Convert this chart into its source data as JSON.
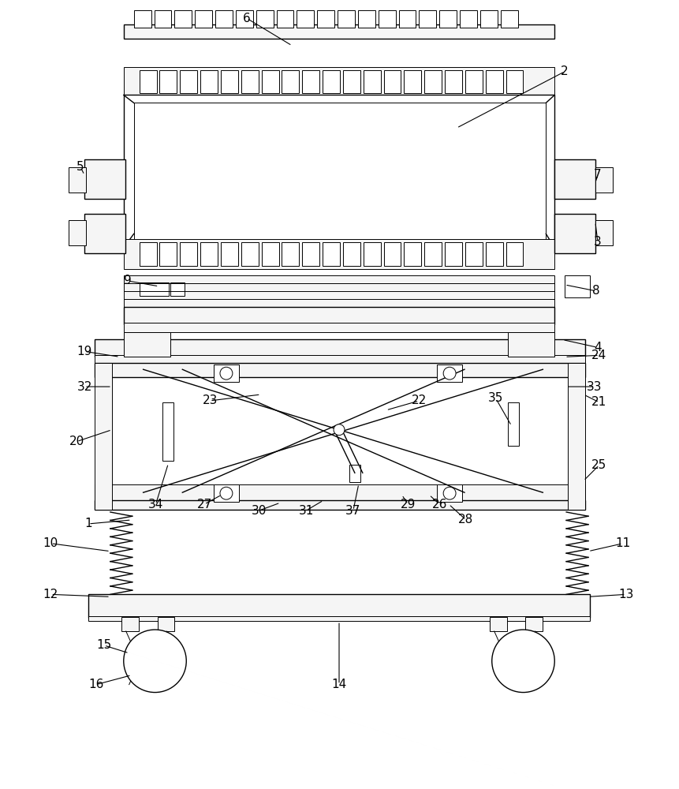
{
  "bg_color": "#ffffff",
  "line_color": "#000000",
  "fig_width": 8.62,
  "fig_height": 10.0,
  "dpi": 100,
  "lw_thin": 0.7,
  "lw_med": 1.0,
  "lw_thick": 1.4,
  "fill_light": "#f5f5f5",
  "fill_white": "#ffffff",
  "label_fontsize": 11
}
